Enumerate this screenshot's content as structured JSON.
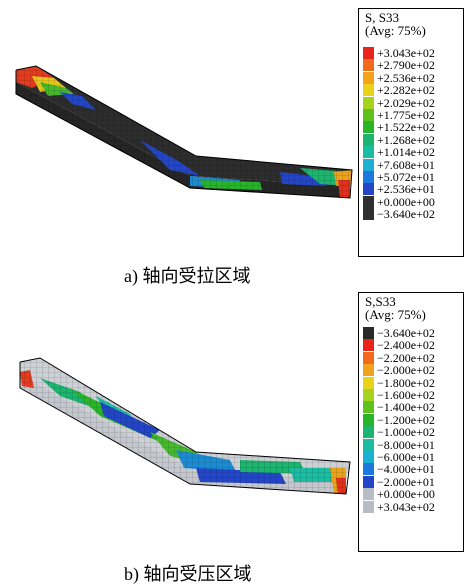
{
  "top_panel": {
    "caption": "a) 轴向受拉区域",
    "legend_title_line1": "S, S33",
    "legend_title_line2": "(Avg: 75%)",
    "entries": [
      {
        "label": "+3.043e+02",
        "color": "#e8231c"
      },
      {
        "label": "+2.790e+02",
        "color": "#f36a1c"
      },
      {
        "label": "+2.536e+02",
        "color": "#f3a21c"
      },
      {
        "label": "+2.282e+02",
        "color": "#ead11a"
      },
      {
        "label": "+2.029e+02",
        "color": "#a8d31c"
      },
      {
        "label": "+1.775e+02",
        "color": "#5ec21c"
      },
      {
        "label": "+1.522e+02",
        "color": "#28b428"
      },
      {
        "label": "+1.268e+02",
        "color": "#1cb46e"
      },
      {
        "label": "+1.014e+02",
        "color": "#1cbca2"
      },
      {
        "label": "+7.608e+01",
        "color": "#1cb0d2"
      },
      {
        "label": "+5.072e+01",
        "color": "#1c78dc"
      },
      {
        "label": "+2.536e+01",
        "color": "#2346c8"
      },
      {
        "label": "+0.000e+00",
        "color": "#303030"
      },
      {
        "label": "−3.640e+02",
        "color": "#303030"
      }
    ]
  },
  "bottom_panel": {
    "caption": "b) 轴向受压区域",
    "legend_title_line1": "S,S33",
    "legend_title_line2": "(Avg: 75%)",
    "entries": [
      {
        "label": "−3.640e+02",
        "color": "#2a2a2a"
      },
      {
        "label": "−2.400e+02",
        "color": "#e8231c"
      },
      {
        "label": "−2.200e+02",
        "color": "#f36a1c"
      },
      {
        "label": "−2.000e+02",
        "color": "#f3a21c"
      },
      {
        "label": "−1.800e+02",
        "color": "#ead11a"
      },
      {
        "label": "−1.600e+02",
        "color": "#a8d31c"
      },
      {
        "label": "−1.400e+02",
        "color": "#5ec21c"
      },
      {
        "label": "−1.200e+02",
        "color": "#28b428"
      },
      {
        "label": "−1.000e+02",
        "color": "#1cb46e"
      },
      {
        "label": "−8.000e+01",
        "color": "#1cbca2"
      },
      {
        "label": "−6.000e+01",
        "color": "#1cb0d2"
      },
      {
        "label": "−4.000e+01",
        "color": "#1c78dc"
      },
      {
        "label": "−2.000e+01",
        "color": "#2346c8"
      },
      {
        "label": "+0.000e+00",
        "color": "#b8bcc4"
      },
      {
        "label": "+3.043e+02",
        "color": "#b8bcc4"
      }
    ]
  }
}
